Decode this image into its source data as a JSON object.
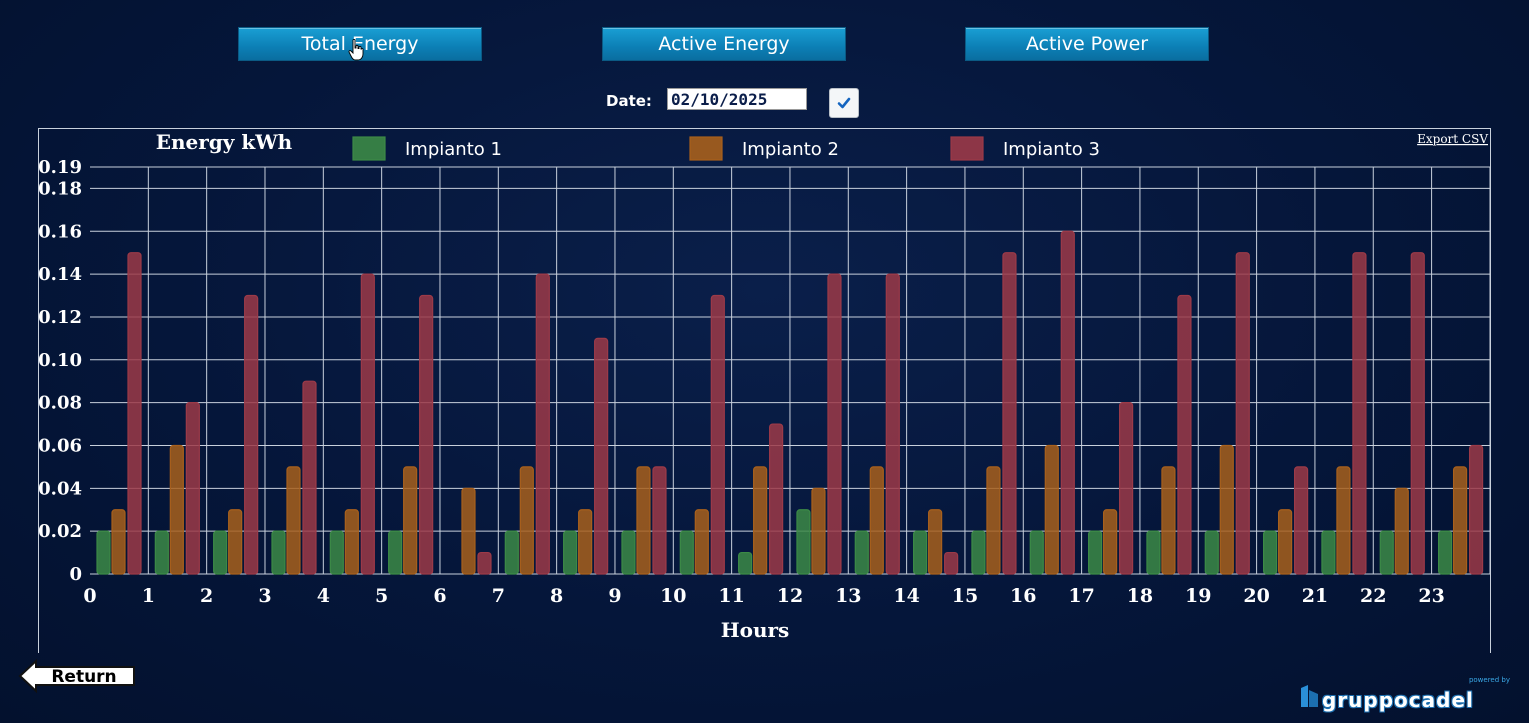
{
  "tabs": {
    "total_energy": "Total Energy",
    "active_energy": "Active Energy",
    "active_power": "Active Power"
  },
  "date": {
    "label": "Date:",
    "value": "02/10/2025"
  },
  "export_label": "Export CSV",
  "return_label": "Return",
  "logo": {
    "powered": "powered by",
    "brand": "gruppocadel"
  },
  "colors": {
    "impianto1": "#3c8a46",
    "impianto2": "#a8601c",
    "impianto3": "#9c3a48",
    "grid": "#c8d0dc",
    "button": "#1a8fc6"
  },
  "chart_data": {
    "type": "bar",
    "title": "Energy kWh",
    "xlabel": "Hours",
    "ylabel": "",
    "ylim": [
      0,
      0.19
    ],
    "yticks": [
      "0",
      "0.02",
      "0.04",
      "0.06",
      "0.08",
      "0.10",
      "0.12",
      "0.14",
      "0.16",
      "0.18",
      "0.19"
    ],
    "categories": [
      "0",
      "1",
      "2",
      "3",
      "4",
      "5",
      "6",
      "7",
      "8",
      "9",
      "10",
      "11",
      "12",
      "13",
      "14",
      "15",
      "16",
      "17",
      "18",
      "19",
      "20",
      "21",
      "22",
      "23"
    ],
    "grid": true,
    "legend_position": "top",
    "series": [
      {
        "name": "Impianto 1",
        "values": [
          0.02,
          0.02,
          0.02,
          0.02,
          0.02,
          0.02,
          0,
          0.02,
          0.02,
          0.02,
          0.02,
          0.01,
          0.03,
          0.02,
          0.02,
          0.02,
          0.02,
          0.02,
          0.02,
          0.02,
          0.02,
          0.02,
          0.02,
          0.02
        ]
      },
      {
        "name": "Impianto 2",
        "values": [
          0.03,
          0.06,
          0.03,
          0.05,
          0.03,
          0.05,
          0.04,
          0.05,
          0.03,
          0.05,
          0.03,
          0.05,
          0.04,
          0.05,
          0.03,
          0.05,
          0.06,
          0.03,
          0.05,
          0.06,
          0.03,
          0.05,
          0.04,
          0.05
        ]
      },
      {
        "name": "Impianto 3",
        "values": [
          0.15,
          0.08,
          0.13,
          0.09,
          0.14,
          0.13,
          0.01,
          0.14,
          0.11,
          0.05,
          0.13,
          0.07,
          0.14,
          0.14,
          0.01,
          0.15,
          0.16,
          0.08,
          0.13,
          0.15,
          0.05,
          0.15,
          0.15,
          0.06
        ]
      }
    ]
  }
}
